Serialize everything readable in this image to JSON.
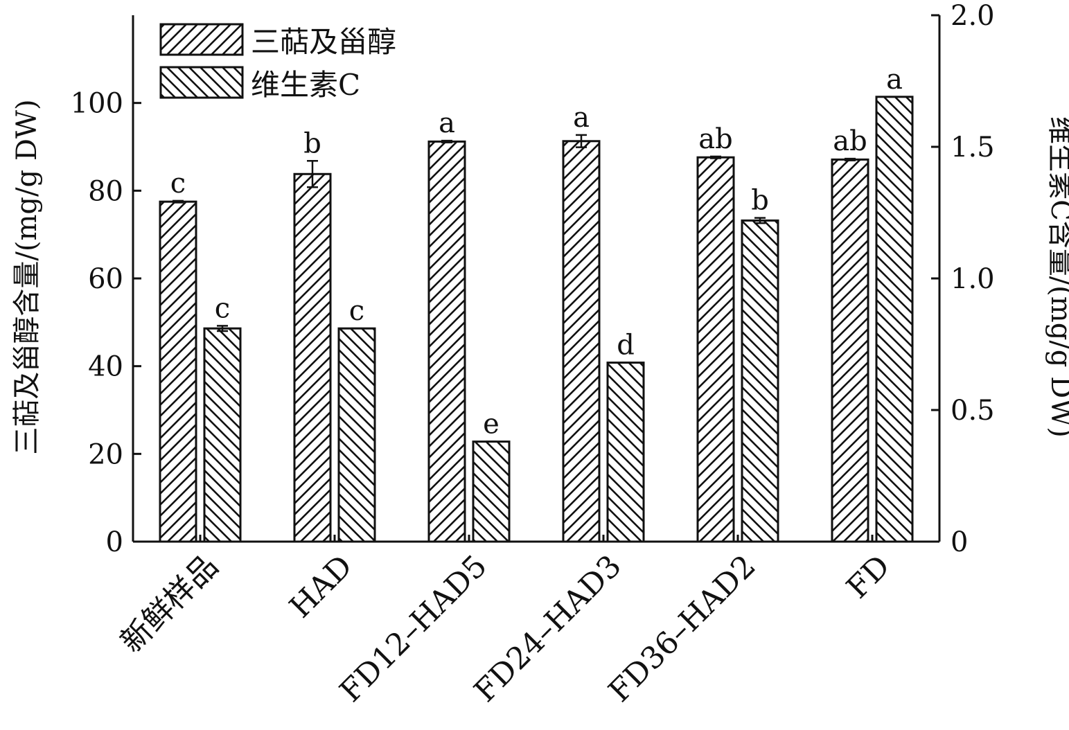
{
  "chart_data": {
    "type": "bar",
    "categories": [
      "新鲜样品",
      "HAD",
      "FD12–HAD5",
      "FD24–HAD3",
      "FD36–HAD2",
      "FD"
    ],
    "left_axis": {
      "label": "三萜及甾醇含量/(mg/g DW)",
      "range": [
        0,
        120
      ],
      "ticks": [
        "0",
        "20",
        "40",
        "60",
        "80",
        "100"
      ],
      "tick_values": [
        0,
        20,
        40,
        60,
        80,
        100
      ]
    },
    "right_axis": {
      "label": "维生素C含量/(mg/g DW)",
      "range": [
        0,
        2.0
      ],
      "ticks": [
        "0",
        "0.5",
        "1.0",
        "1.5",
        "2.0"
      ],
      "tick_values": [
        0,
        0.5,
        1.0,
        1.5,
        2.0
      ]
    },
    "series": [
      {
        "name": "三萜及甾醇",
        "axis": "left",
        "pattern": "hatch-forward",
        "values": [
          77.5,
          83.8,
          91.2,
          91.3,
          87.6,
          87.1
        ],
        "errors": [
          0.2,
          3.0,
          0.2,
          1.4,
          0.2,
          0.2
        ],
        "labels": [
          "c",
          "b",
          "a",
          "a",
          "ab",
          "ab"
        ]
      },
      {
        "name": "维生素C",
        "axis": "right",
        "pattern": "hatch-backward",
        "values": [
          0.81,
          0.81,
          0.38,
          0.68,
          1.22,
          1.69
        ],
        "errors": [
          0.01,
          0.0,
          0.0,
          0.0,
          0.01,
          0.0
        ],
        "labels": [
          "c",
          "c",
          "e",
          "d",
          "b",
          "a"
        ]
      }
    ],
    "legend_position": "top-left",
    "grid": false
  },
  "colors": {
    "ink": "#111111",
    "background": "#ffffff"
  }
}
